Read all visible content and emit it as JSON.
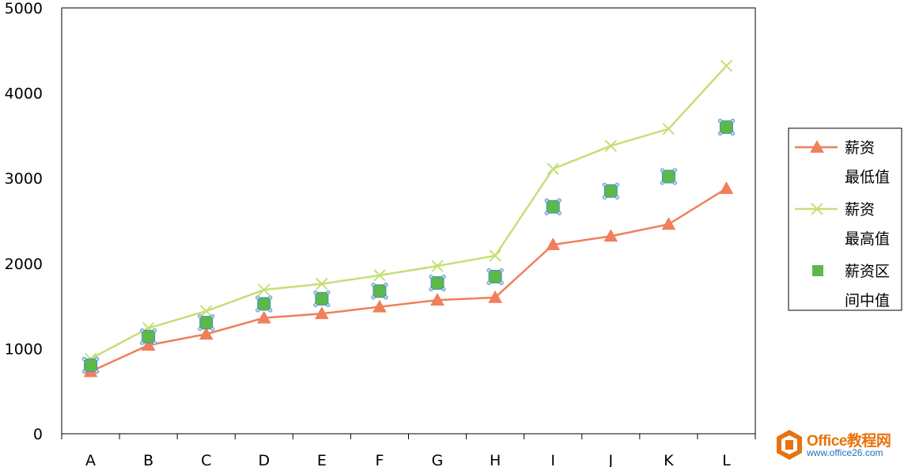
{
  "chart_data": {
    "type": "line",
    "categories": [
      "A",
      "B",
      "C",
      "D",
      "E",
      "F",
      "G",
      "H",
      "I",
      "J",
      "K",
      "L"
    ],
    "ylim": [
      0,
      5000
    ],
    "yticks": [
      0,
      1000,
      2000,
      3000,
      4000,
      5000
    ],
    "grid": false,
    "legend_position": "right",
    "series": [
      {
        "name_lines": [
          "薪资",
          "最低值"
        ],
        "kind": "line",
        "marker": "triangle",
        "color": "#f07f5a",
        "values": [
          730,
          1040,
          1170,
          1360,
          1410,
          1490,
          1570,
          1600,
          2220,
          2320,
          2460,
          2880
        ]
      },
      {
        "name_lines": [
          "薪资",
          "最高值"
        ],
        "kind": "line",
        "marker": "x",
        "color": "#c5df77",
        "values": [
          880,
          1240,
          1440,
          1690,
          1760,
          1860,
          1970,
          2090,
          3110,
          3380,
          3580,
          4320
        ]
      },
      {
        "name_lines": [
          "薪资区",
          "间中值"
        ],
        "kind": "scatter",
        "marker": "square",
        "color": "#5db84a",
        "values": [
          805,
          1140,
          1305,
          1525,
          1585,
          1675,
          1770,
          1845,
          2665,
          2850,
          3020,
          3600
        ]
      }
    ]
  },
  "watermark": {
    "title": "Office教程网",
    "url": "www.office26.com",
    "accent": "#e8720c"
  }
}
